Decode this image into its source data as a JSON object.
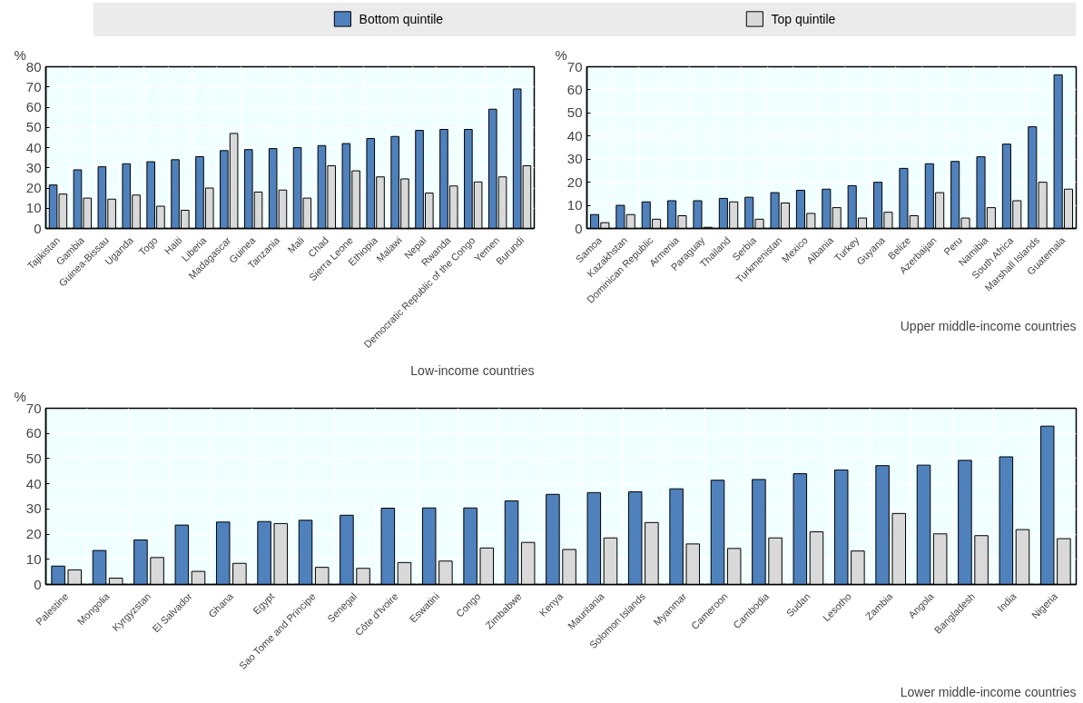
{
  "chart_data": [
    {
      "type": "bar",
      "title": "Low-income countries",
      "ylabel": "%",
      "legend": "top",
      "grid": true,
      "ylim": [
        0,
        80
      ],
      "yticks": [
        0,
        10,
        20,
        30,
        40,
        50,
        60,
        70,
        80
      ],
      "categories": [
        "Tajikistan",
        "Gambia",
        "Guinea-Bissau",
        "Uganda",
        "Togo",
        "Haiti",
        "Liberia",
        "Madagascar",
        "Guinea",
        "Tanzania",
        "Mali",
        "Chad",
        "Sierra Leone",
        "Ethiopia",
        "Malawi",
        "Nepal",
        "Rwanda",
        "Democratic Republic of the Congo",
        "Yemen",
        "Burundi"
      ],
      "series": [
        {
          "name": "Bottom quintile",
          "color": "#4f81bd",
          "values": [
            21.5,
            29,
            30.5,
            32,
            33,
            34,
            35.5,
            38.5,
            39,
            39.5,
            40,
            41,
            42,
            44.5,
            45.5,
            48.5,
            49,
            49,
            59,
            69
          ]
        },
        {
          "name": "Top quintile",
          "color": "#d9d9d9",
          "values": [
            17,
            15,
            14.5,
            16.5,
            11,
            9,
            20,
            47,
            18,
            19,
            15,
            31,
            28.5,
            25.5,
            24.5,
            17.5,
            21,
            23,
            25.5,
            31
          ]
        }
      ]
    },
    {
      "type": "bar",
      "title": "Upper middle-income countries",
      "ylabel": "%",
      "grid": true,
      "ylim": [
        0,
        70
      ],
      "yticks": [
        0,
        10,
        20,
        30,
        40,
        50,
        60,
        70
      ],
      "categories": [
        "Samoa",
        "Kazakhstan",
        "Dominican Republic",
        "Armenia",
        "Paraguay",
        "Thailand",
        "Serbia",
        "Turkmenistan",
        "Mexico",
        "Albania",
        "Turkey",
        "Guyana",
        "Belize",
        "Azerbaijan",
        "Peru",
        "Namibia",
        "South Africa",
        "Marshall Islands",
        "Guatemala"
      ],
      "series": [
        {
          "color": "#4f81bd",
          "values": [
            6,
            10,
            11.5,
            12,
            12,
            13,
            13.5,
            15.5,
            16.5,
            17,
            18.5,
            20,
            26,
            28,
            29,
            31,
            36.5,
            44,
            66.5
          ]
        },
        {
          "color": "#d9d9d9",
          "values": [
            2.5,
            6,
            4,
            5.5,
            0.5,
            11.5,
            4,
            11,
            6.5,
            9,
            4.5,
            7,
            5.5,
            15.5,
            4.5,
            9,
            12,
            20,
            17
          ]
        }
      ]
    },
    {
      "type": "bar",
      "title": "Lower middle-income countries",
      "ylabel": "%",
      "grid": true,
      "ylim": [
        0,
        70
      ],
      "yticks": [
        0,
        10,
        20,
        30,
        40,
        50,
        60,
        70
      ],
      "categories": [
        "Palestine",
        "Mongolia",
        "Kyrgyzstan",
        "El Salvador",
        "Ghana",
        "Egypt",
        "Sao Tome and Principe",
        "Senegal",
        "Côte d'Ivoire",
        "Eswatini",
        "Congo",
        "Zimbabwe",
        "Kenya",
        "Mauritania",
        "Solomon Islands",
        "Myanmar",
        "Cameroon",
        "Cambodia",
        "Sudan",
        "Lesotho",
        "Zambia",
        "Angola",
        "Bangladesh",
        "India",
        "Nigeria"
      ],
      "series": [
        {
          "color": "#4f81bd",
          "values": [
            7.3,
            13.5,
            17.7,
            23.6,
            24.8,
            25,
            25.5,
            27.5,
            30.3,
            30.4,
            30.4,
            33.2,
            35.8,
            36.5,
            36.8,
            38,
            41.4,
            41.7,
            44,
            45.5,
            47.2,
            47.4,
            49.3,
            50.7,
            62.9
          ]
        },
        {
          "color": "#d9d9d9",
          "values": [
            5.8,
            2.5,
            10.7,
            5.2,
            8.4,
            24.2,
            6.8,
            6.4,
            8.7,
            9.3,
            14.5,
            16.7,
            13.9,
            18.5,
            24.6,
            16.1,
            14.3,
            18.5,
            20.9,
            13.3,
            28.2,
            20.1,
            19.4,
            21.8,
            18.2
          ]
        }
      ]
    }
  ]
}
